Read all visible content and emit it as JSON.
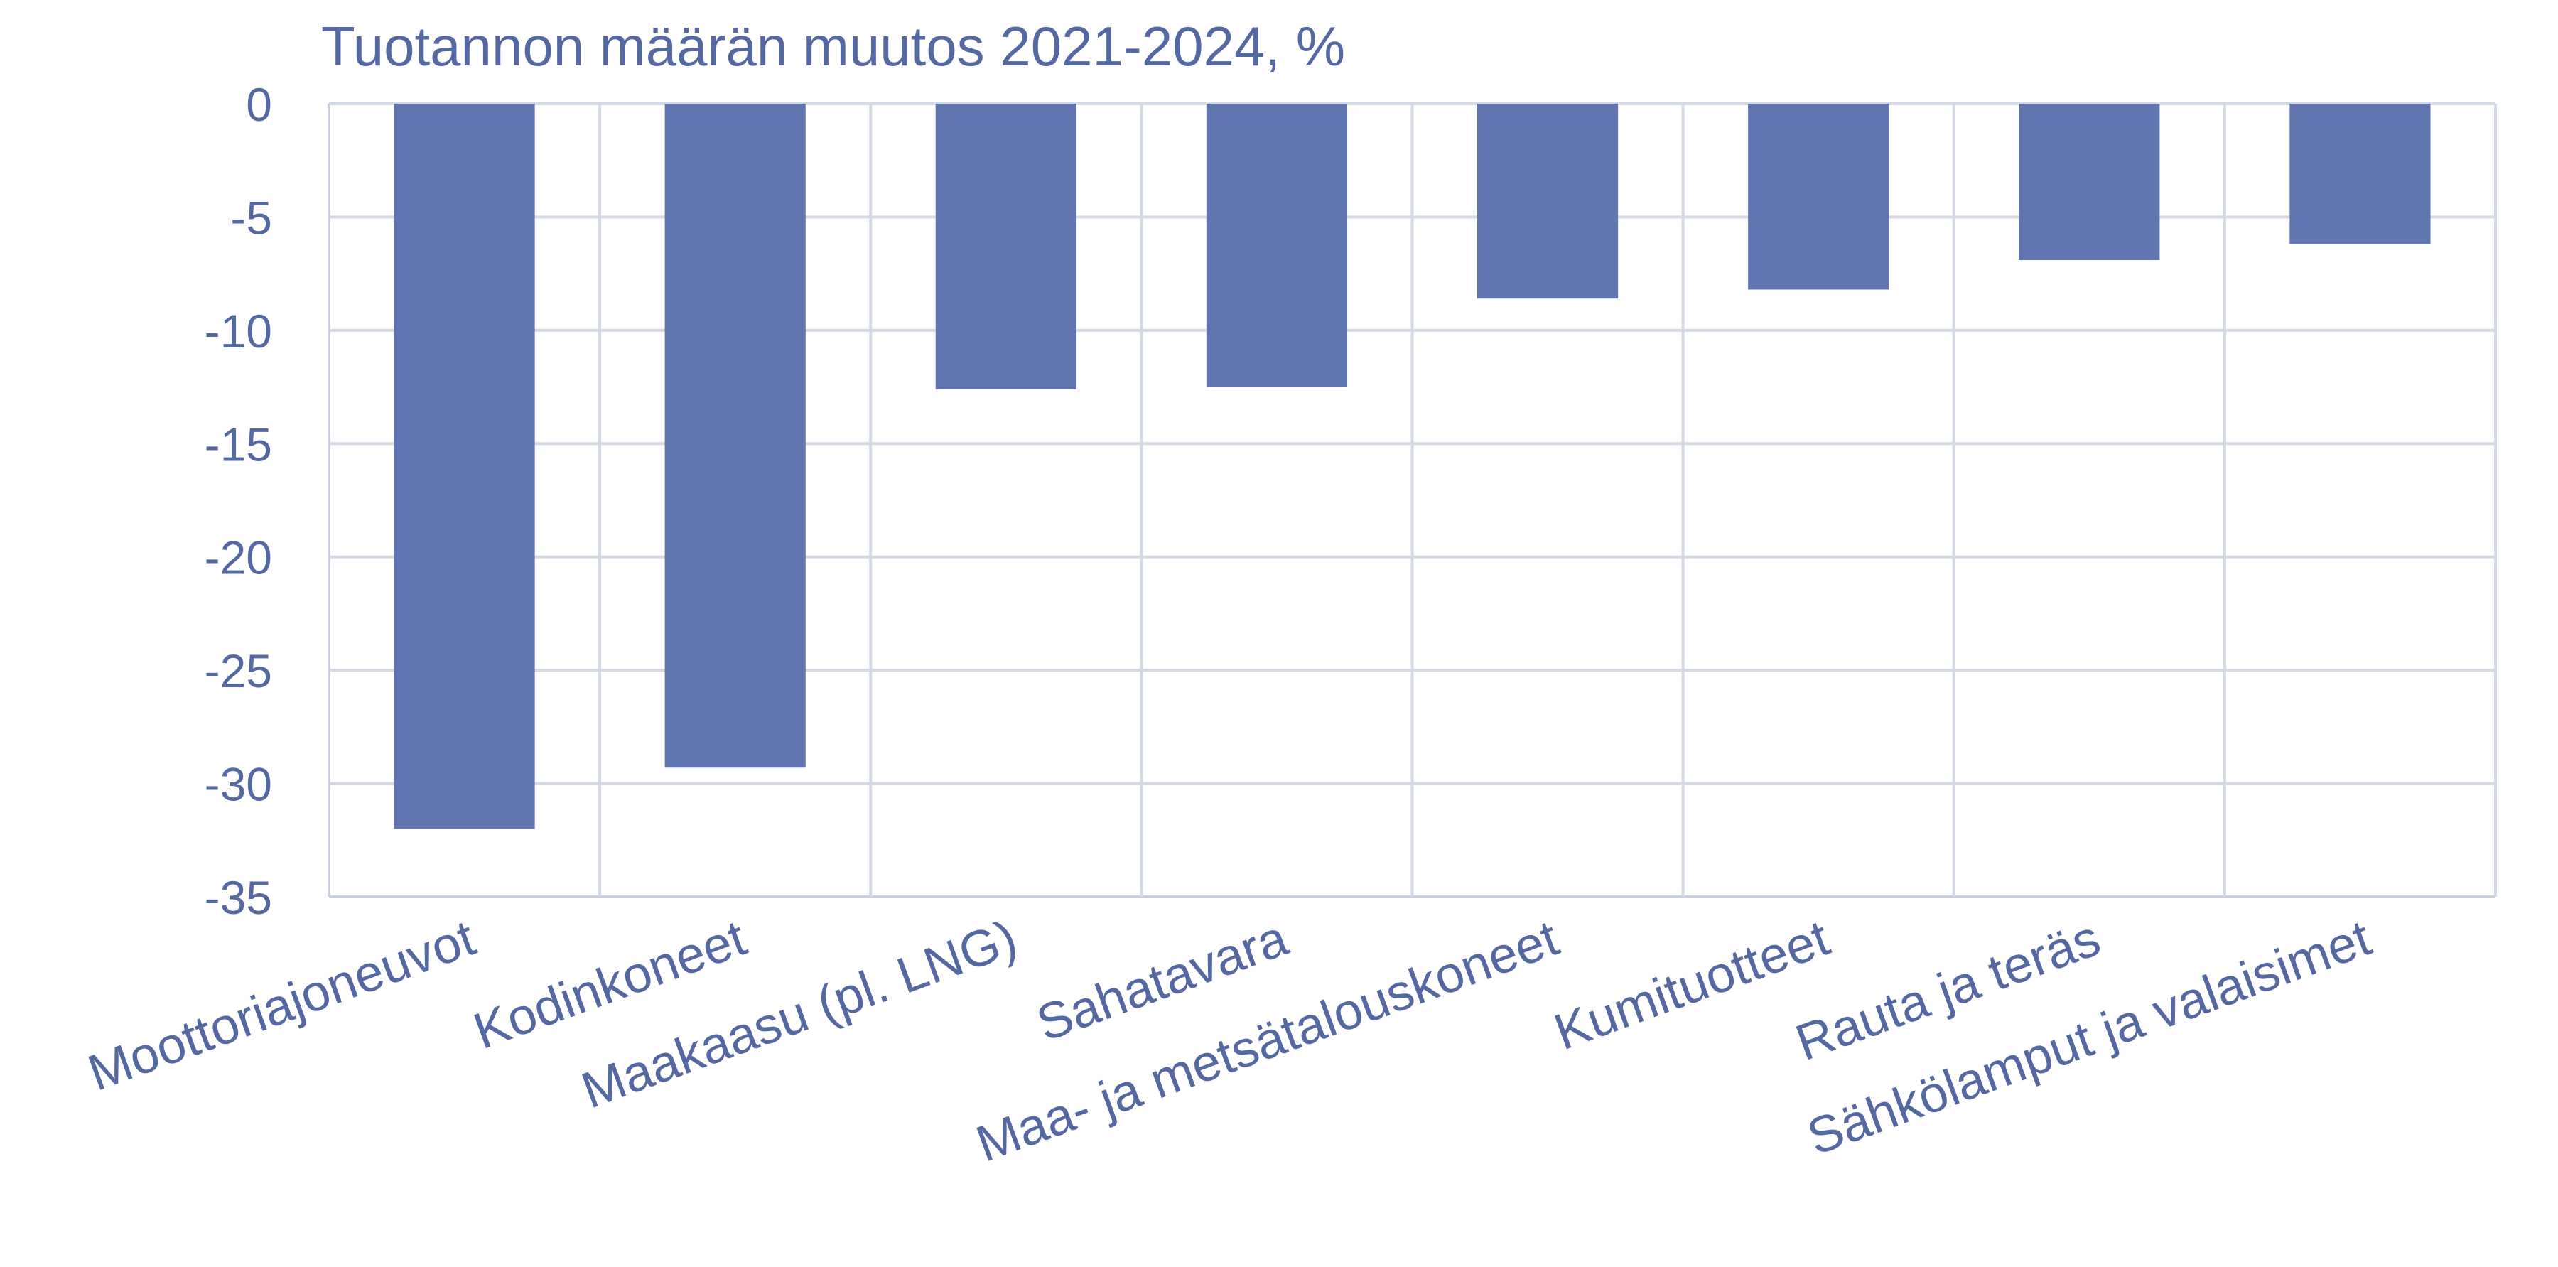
{
  "chart_data": {
    "type": "bar",
    "title": "Tuotannon määrän muutos 2021-2024, %",
    "xlabel": "",
    "ylabel": "",
    "categories": [
      "Moottoriajoneuvot",
      "Kodinkoneet",
      "Maakaasu (pl. LNG)",
      "Sahatavara",
      "Maa- ja metsätalouskoneet",
      "Kumituotteet",
      "Rauta ja teräs",
      "Sähkölamput ja valaisimet"
    ],
    "values": [
      -32.0,
      -29.3,
      -12.6,
      -12.5,
      -8.6,
      -8.2,
      -6.9,
      -6.2
    ],
    "ylim": [
      -35,
      0
    ],
    "yticks": [
      0,
      -5,
      -10,
      -15,
      -20,
      -25,
      -30,
      -35
    ],
    "ytick_labels": [
      "0",
      "-5",
      "-10",
      "-15",
      "-20",
      "-25",
      "-30",
      "-35"
    ],
    "grid": true,
    "legend": "none",
    "bar_color": "#6176b1",
    "text_color": "#5468a2"
  }
}
